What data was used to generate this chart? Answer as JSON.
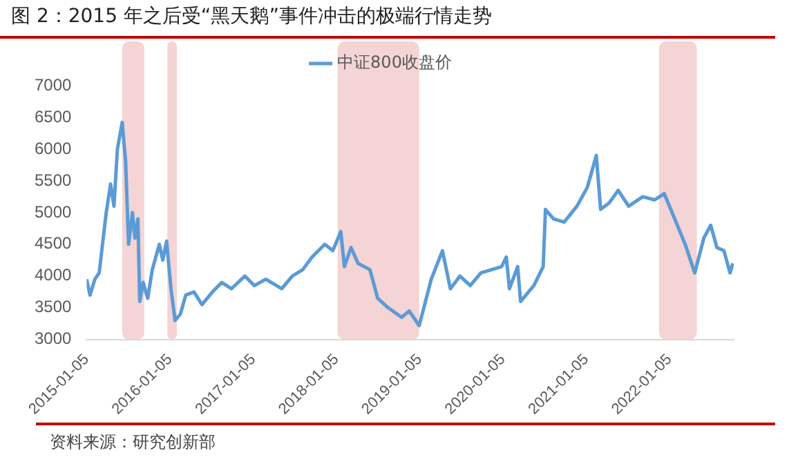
{
  "chart_data": {
    "type": "line",
    "title": "图 2：2015 年之后受“黑天鹅”事件冲击的极端行情走势",
    "annotations": [
      "资料来源：研究创新部"
    ],
    "x": [
      "2015-01-05",
      "2015-01-20",
      "2015-02-10",
      "2015-03-01",
      "2015-04-01",
      "2015-04-20",
      "2015-05-05",
      "2015-05-20",
      "2015-06-10",
      "2015-06-25",
      "2015-07-08",
      "2015-07-25",
      "2015-08-05",
      "2015-08-18",
      "2015-08-26",
      "2015-09-10",
      "2015-09-30",
      "2015-10-20",
      "2015-11-20",
      "2015-12-05",
      "2015-12-22",
      "2016-01-10",
      "2016-01-28",
      "2016-02-20",
      "2016-03-15",
      "2016-04-20",
      "2016-05-25",
      "2016-07-10",
      "2016-08-20",
      "2016-10-01",
      "2016-11-29",
      "2017-01-10",
      "2017-03-01",
      "2017-05-10",
      "2017-06-25",
      "2017-08-10",
      "2017-09-20",
      "2017-11-15",
      "2017-12-20",
      "2018-01-24",
      "2018-02-09",
      "2018-03-10",
      "2018-04-10",
      "2018-06-01",
      "2018-07-05",
      "2018-08-20",
      "2018-10-18",
      "2018-11-20",
      "2019-01-03",
      "2019-02-25",
      "2019-04-15",
      "2019-05-20",
      "2019-07-01",
      "2019-08-15",
      "2019-10-01",
      "2019-12-31",
      "2020-01-20",
      "2020-02-03",
      "2020-03-10",
      "2020-03-23",
      "2020-05-20",
      "2020-06-30",
      "2020-07-10",
      "2020-08-15",
      "2020-09-30",
      "2020-11-25",
      "2021-01-10",
      "2021-02-18",
      "2021-03-09",
      "2021-04-15",
      "2021-05-25",
      "2021-07-10",
      "2021-09-10",
      "2021-11-01",
      "2021-12-13",
      "2022-01-28",
      "2022-03-15",
      "2022-04-26",
      "2022-06-05",
      "2022-07-05",
      "2022-08-01",
      "2022-09-01",
      "2022-09-28",
      "2022-10-10"
    ],
    "series": [
      {
        "name": "中证800收盘价",
        "color": "#5b9bd5",
        "values": [
          3950,
          3700,
          3950,
          4050,
          5000,
          5450,
          5100,
          6000,
          6420,
          5800,
          4500,
          5000,
          4600,
          4900,
          3600,
          3900,
          3650,
          4100,
          4500,
          4250,
          4550,
          3800,
          3300,
          3400,
          3700,
          3750,
          3550,
          3750,
          3900,
          3800,
          4000,
          3850,
          3950,
          3800,
          4000,
          4100,
          4300,
          4500,
          4400,
          4700,
          4150,
          4450,
          4200,
          4100,
          3650,
          3500,
          3350,
          3450,
          3220,
          3950,
          4400,
          3800,
          4000,
          3850,
          4050,
          4150,
          4300,
          3800,
          4150,
          3600,
          3850,
          4150,
          5050,
          4900,
          4850,
          5100,
          5400,
          5900,
          5050,
          5150,
          5350,
          5100,
          5250,
          5200,
          5300,
          4900,
          4500,
          4050,
          4600,
          4800,
          4450,
          4400,
          4050,
          4200
        ]
      }
    ],
    "xlim": [
      "2015-01-05",
      "2022-10-14"
    ],
    "xticks": [
      "2015-01-05",
      "2016-01-05",
      "2017-01-05",
      "2018-01-05",
      "2019-01-05",
      "2020-01-05",
      "2021-01-05",
      "2022-01-05"
    ],
    "ylim": [
      3000,
      7000
    ],
    "yticks": [
      3000,
      3500,
      4000,
      4500,
      5000,
      5500,
      6000,
      6500,
      7000
    ],
    "bands": [
      {
        "axis": "x",
        "from": "2015-06-10",
        "to": "2015-09-15",
        "color": "#f4d4d4"
      },
      {
        "axis": "x",
        "from": "2015-12-25",
        "to": "2016-02-05",
        "color": "#f4d4d4"
      },
      {
        "axis": "x",
        "from": "2018-01-10",
        "to": "2019-01-03",
        "color": "#f4d4d4"
      },
      {
        "axis": "x",
        "from": "2021-11-20",
        "to": "2022-05-05",
        "color": "#f4d4d4"
      }
    ],
    "grid": false,
    "legend": "top",
    "marker": "none",
    "line_style": "solid"
  }
}
